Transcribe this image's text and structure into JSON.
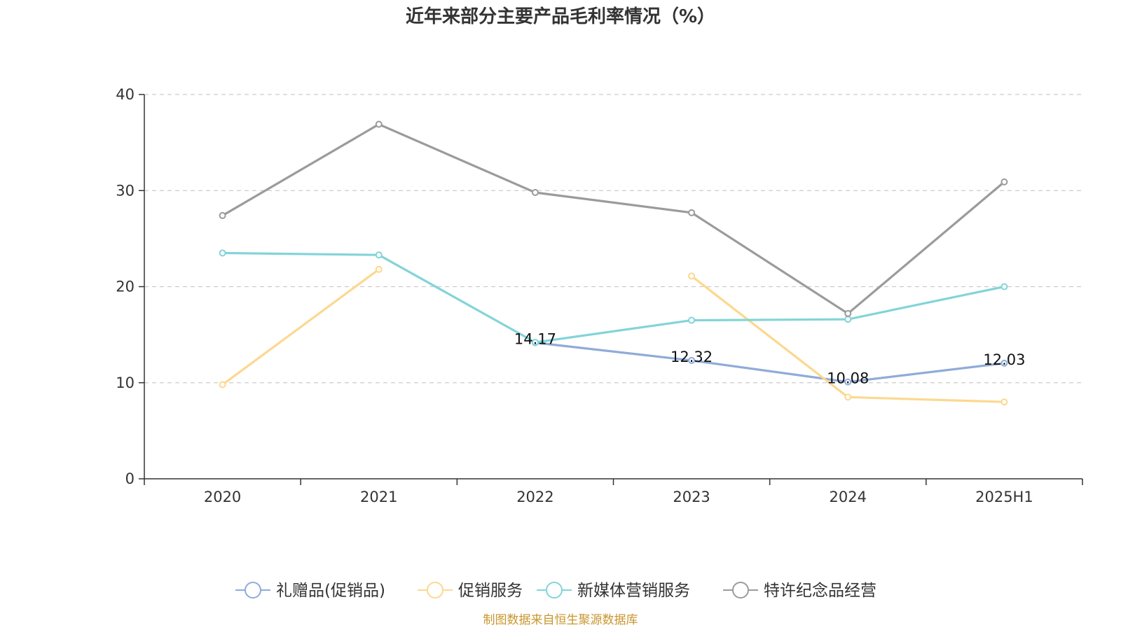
{
  "chart_data": {
    "type": "line",
    "title": "近年来部分主要产品毛利率情况（%）",
    "categories": [
      "2020",
      "2021",
      "2022",
      "2023",
      "2024",
      "2025H1"
    ],
    "ylim": [
      0,
      40
    ],
    "yticks": [
      0,
      10,
      20,
      30,
      40
    ],
    "grid": true,
    "legend_position": "bottom",
    "series": [
      {
        "name": "礼赠品(促销品)",
        "color": "#8fabd9",
        "values": [
          null,
          null,
          14.17,
          12.32,
          10.08,
          12.03
        ],
        "labels": [
          null,
          null,
          "14.17",
          "12.32",
          "10.08",
          "12.03"
        ]
      },
      {
        "name": "促销服务",
        "color": "#fcd88f",
        "values": [
          9.8,
          21.8,
          null,
          21.1,
          8.5,
          8.0
        ],
        "labels": []
      },
      {
        "name": "新媒体营销服务",
        "color": "#83d4d8",
        "values": [
          23.5,
          23.3,
          14.2,
          16.5,
          16.6,
          20.0
        ],
        "labels": []
      },
      {
        "name": "特许纪念品经营",
        "color": "#9b9b9b",
        "values": [
          27.4,
          36.9,
          29.8,
          27.7,
          17.2,
          30.9
        ],
        "labels": []
      }
    ]
  },
  "source_note": "制图数据来自恒生聚源数据库"
}
